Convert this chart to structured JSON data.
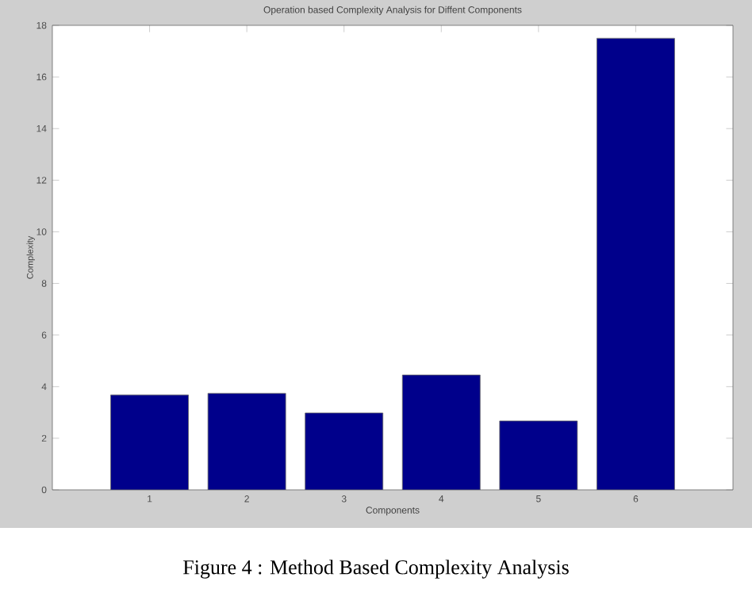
{
  "chart_data": {
    "type": "bar",
    "title": "Operation based Complexity Analysis for Diffent Components",
    "xlabel": "Components",
    "ylabel": "Complexity",
    "categories": [
      "1",
      "2",
      "3",
      "4",
      "5",
      "6"
    ],
    "values": [
      3.68,
      3.74,
      2.98,
      4.45,
      2.67,
      17.5
    ],
    "color": "#00008b",
    "ylim": [
      0,
      18
    ],
    "yticks": [
      0,
      2,
      4,
      6,
      8,
      10,
      12,
      14,
      16,
      18
    ],
    "annotations": [
      "Figure 4 : Method Based Complexity Analysis"
    ]
  }
}
